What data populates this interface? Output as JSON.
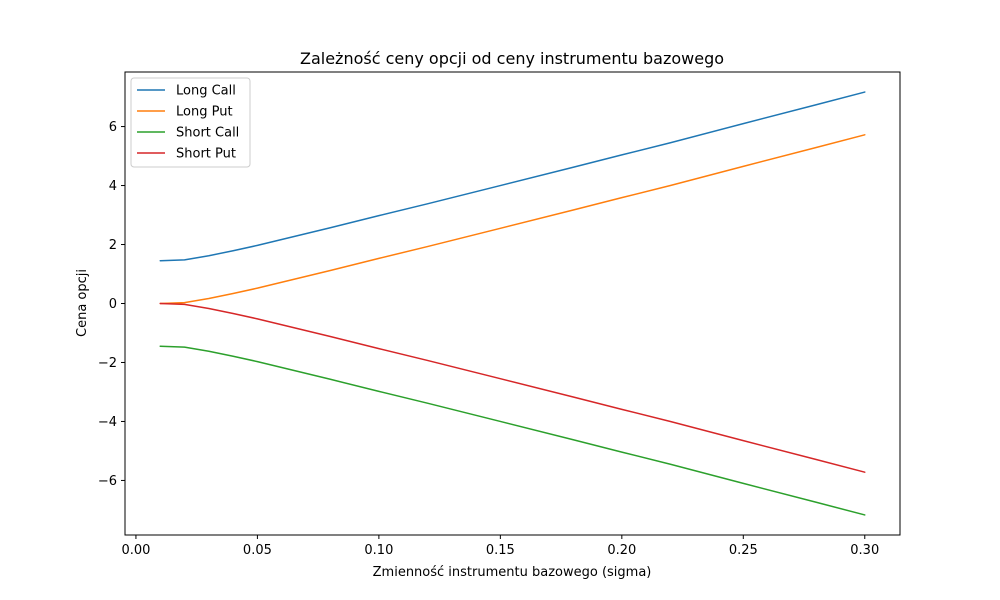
{
  "chart_data": {
    "type": "line",
    "title": "Zależność ceny opcji od ceny instrumentu bazowego",
    "xlabel": "Zmienność instrumentu bazowego (sigma)",
    "ylabel": "Cena opcji",
    "xlim": [
      -0.0045,
      0.3145
    ],
    "ylim": [
      -7.85,
      7.85
    ],
    "xticks": [
      0.0,
      0.05,
      0.1,
      0.15,
      0.2,
      0.25,
      0.3
    ],
    "xtick_labels": [
      "0.00",
      "0.05",
      "0.10",
      "0.15",
      "0.20",
      "0.25",
      "0.30"
    ],
    "yticks": [
      -6,
      -4,
      -2,
      0,
      2,
      4,
      6
    ],
    "ytick_labels": [
      "−6",
      "−4",
      "−2",
      "0",
      "2",
      "4",
      "6"
    ],
    "grid": false,
    "legend_position": "top-left",
    "x": [
      0.01,
      0.02,
      0.03,
      0.04,
      0.05,
      0.06,
      0.08,
      0.1,
      0.12,
      0.15,
      0.18,
      0.2,
      0.22,
      0.25,
      0.28,
      0.3
    ],
    "series": [
      {
        "name": "Long Call",
        "color": "#1f77b4",
        "values": [
          1.45,
          1.48,
          1.62,
          1.79,
          1.97,
          2.17,
          2.57,
          2.98,
          3.38,
          4.0,
          4.62,
          5.04,
          5.45,
          6.1,
          6.74,
          7.17
        ]
      },
      {
        "name": "Long Put",
        "color": "#ff7f0e",
        "values": [
          0.0,
          0.03,
          0.17,
          0.34,
          0.52,
          0.72,
          1.12,
          1.53,
          1.93,
          2.55,
          3.17,
          3.59,
          4.0,
          4.65,
          5.29,
          5.72
        ]
      },
      {
        "name": "Short Call",
        "color": "#2ca02c",
        "values": [
          -1.45,
          -1.48,
          -1.62,
          -1.79,
          -1.97,
          -2.17,
          -2.57,
          -2.98,
          -3.38,
          -4.0,
          -4.62,
          -5.04,
          -5.45,
          -6.1,
          -6.74,
          -7.17
        ]
      },
      {
        "name": "Short Put",
        "color": "#d62728",
        "values": [
          0.0,
          -0.03,
          -0.17,
          -0.34,
          -0.52,
          -0.72,
          -1.12,
          -1.53,
          -1.93,
          -2.55,
          -3.17,
          -3.59,
          -4.0,
          -4.65,
          -5.29,
          -5.72
        ]
      }
    ]
  }
}
